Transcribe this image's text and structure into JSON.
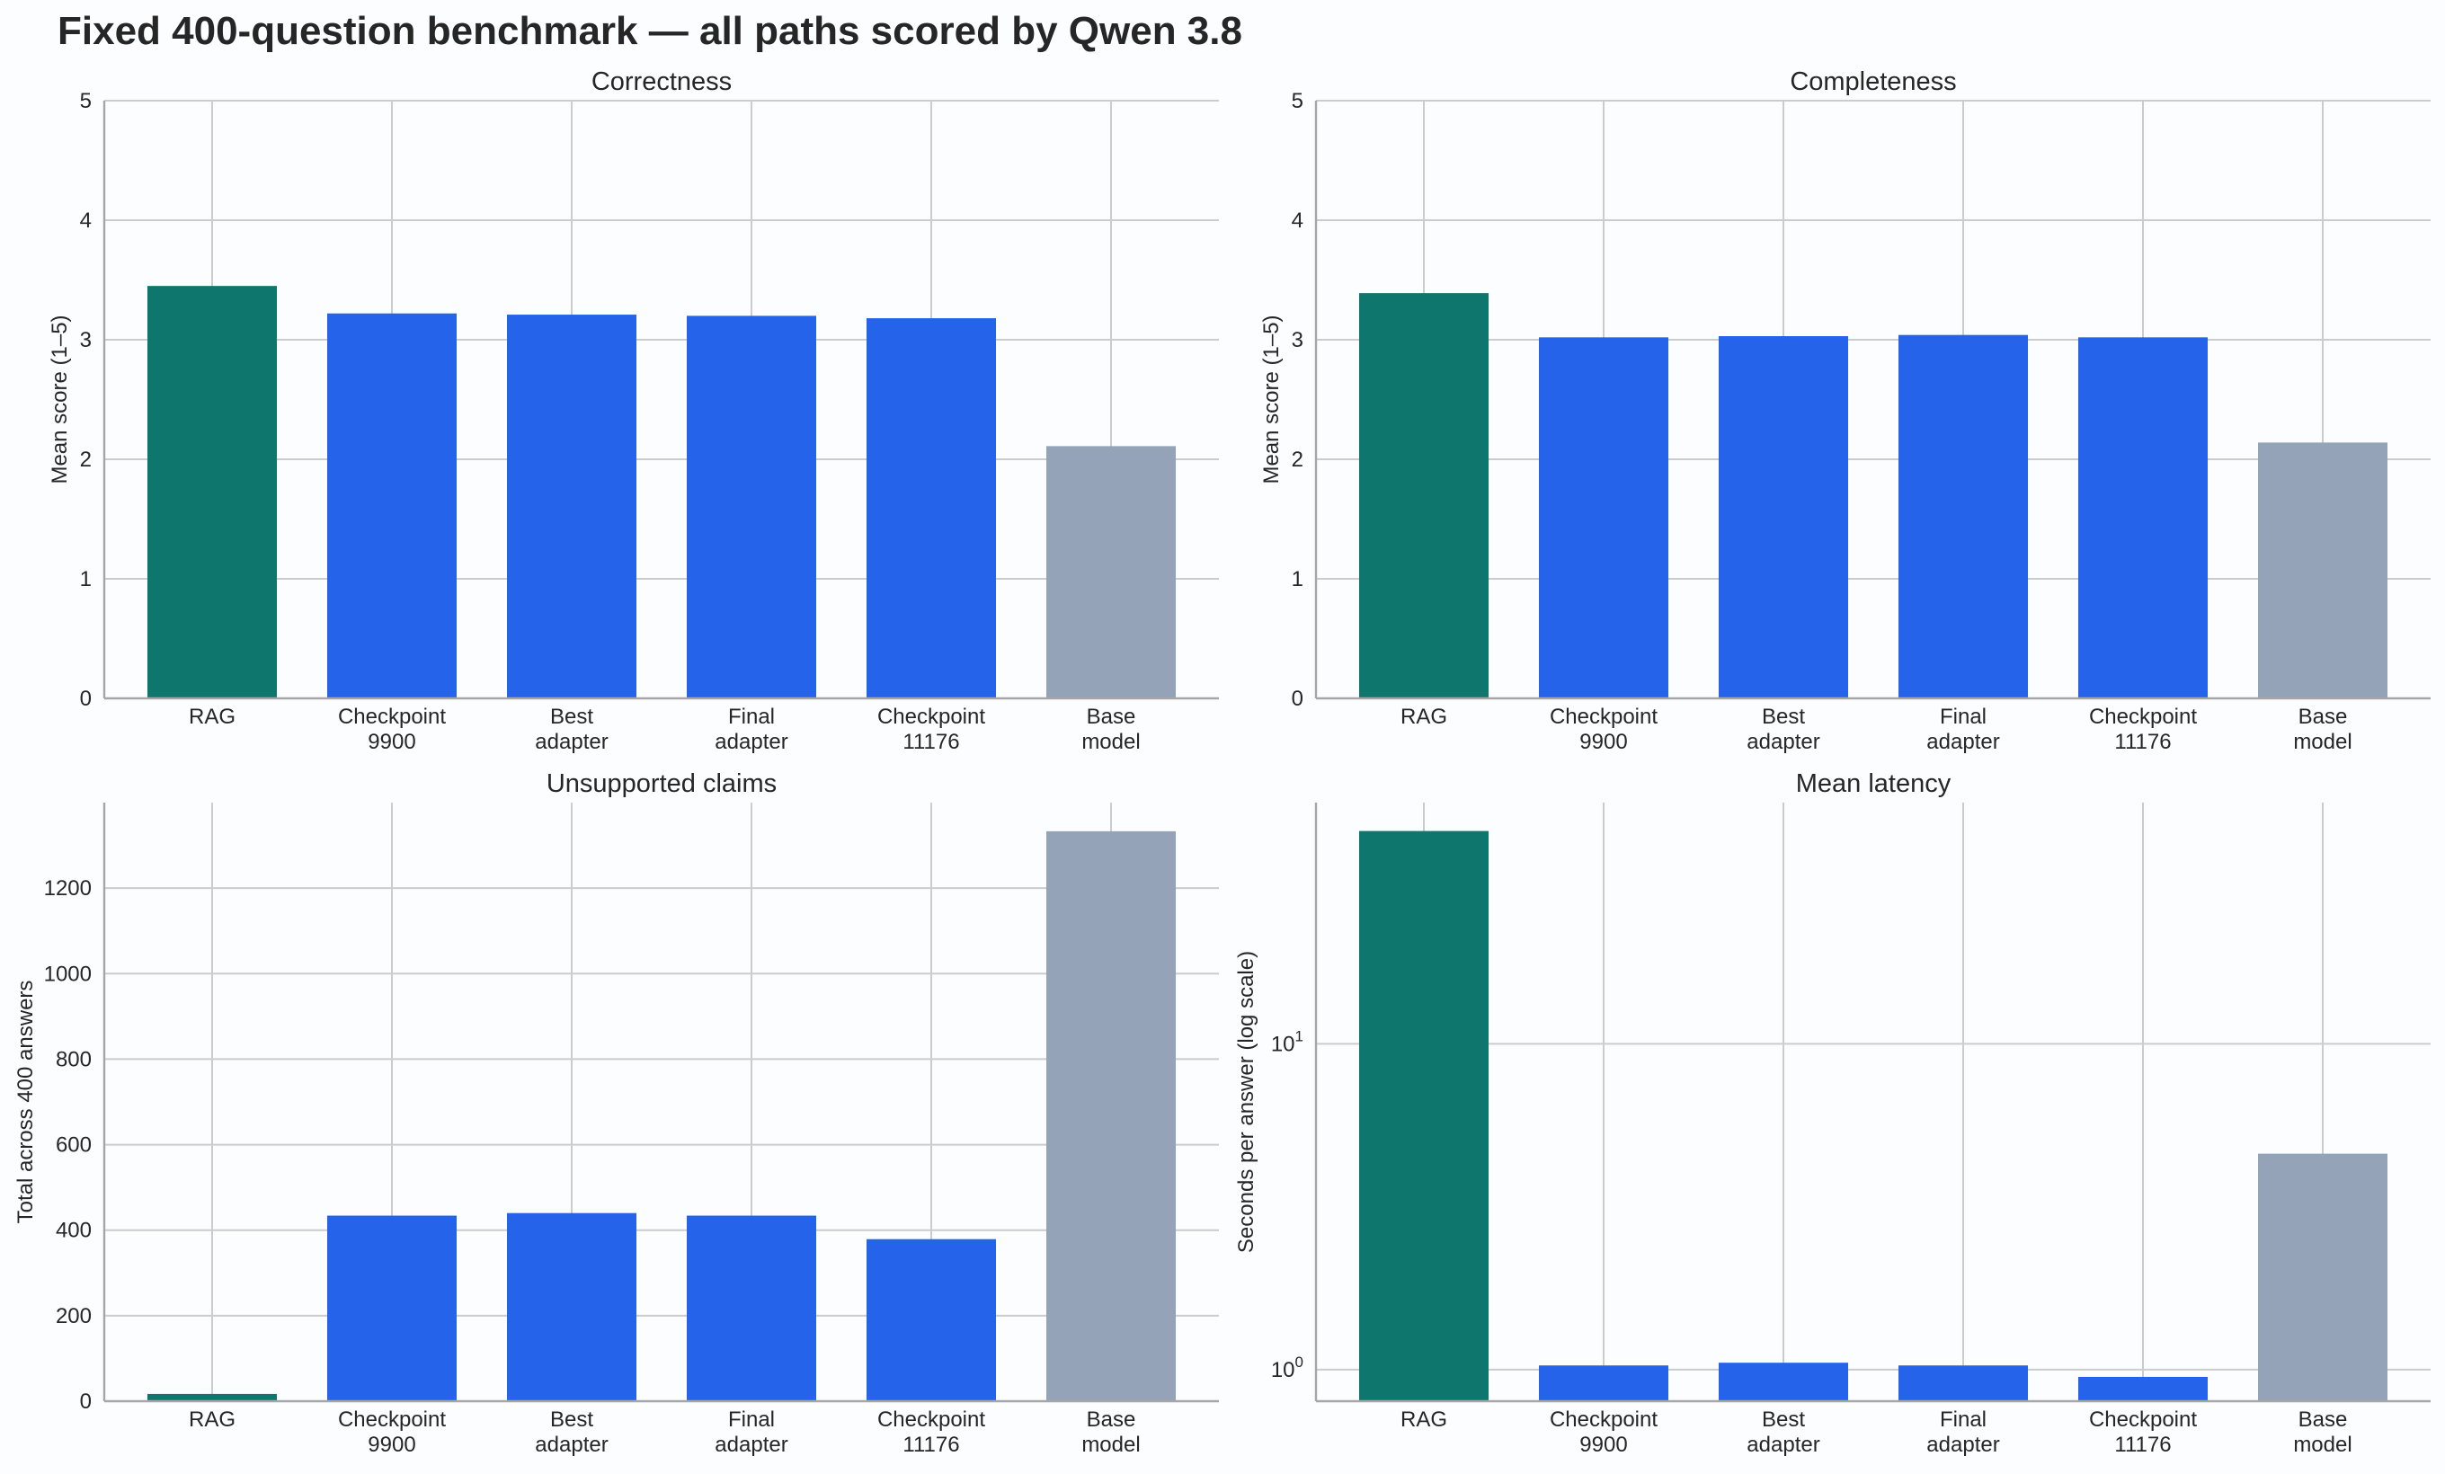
{
  "figure": {
    "title": "Fixed 400-question benchmark — all paths scored by Qwen 3.8"
  },
  "colors": {
    "rag": "#0f766e",
    "adapter": "#2563eb",
    "base": "#94a3b8",
    "grid": "#cccccc",
    "axis": "#a6a6a6",
    "text": "#262626",
    "background": "#fcfdfe"
  },
  "chart_data": [
    {
      "type": "bar",
      "title": "Correctness",
      "xlabel": "",
      "ylabel": "Mean score (1–5)",
      "categories": [
        [
          "RAG"
        ],
        [
          "Checkpoint",
          "9900"
        ],
        [
          "Best",
          "adapter"
        ],
        [
          "Final",
          "adapter"
        ],
        [
          "Checkpoint",
          "11176"
        ],
        [
          "Base",
          "model"
        ]
      ],
      "values": [
        3.45,
        3.22,
        3.21,
        3.2,
        3.18,
        2.11
      ],
      "bar_colors": [
        "rag",
        "adapter",
        "adapter",
        "adapter",
        "adapter",
        "base"
      ],
      "yscale": "linear",
      "ylim": [
        0,
        5
      ],
      "yticks": [
        0,
        1,
        2,
        3,
        4,
        5
      ],
      "ytick_labels": [
        "0",
        "1",
        "2",
        "3",
        "4",
        "5"
      ],
      "grid": true
    },
    {
      "type": "bar",
      "title": "Completeness",
      "xlabel": "",
      "ylabel": "Mean score (1–5)",
      "categories": [
        [
          "RAG"
        ],
        [
          "Checkpoint",
          "9900"
        ],
        [
          "Best",
          "adapter"
        ],
        [
          "Final",
          "adapter"
        ],
        [
          "Checkpoint",
          "11176"
        ],
        [
          "Base",
          "model"
        ]
      ],
      "values": [
        3.39,
        3.02,
        3.03,
        3.04,
        3.02,
        2.14
      ],
      "bar_colors": [
        "rag",
        "adapter",
        "adapter",
        "adapter",
        "adapter",
        "base"
      ],
      "yscale": "linear",
      "ylim": [
        0,
        5
      ],
      "yticks": [
        0,
        1,
        2,
        3,
        4,
        5
      ],
      "ytick_labels": [
        "0",
        "1",
        "2",
        "3",
        "4",
        "5"
      ],
      "grid": true
    },
    {
      "type": "bar",
      "title": "Unsupported claims",
      "xlabel": "",
      "ylabel": "Total across 400 answers",
      "categories": [
        [
          "RAG"
        ],
        [
          "Checkpoint",
          "9900"
        ],
        [
          "Best",
          "adapter"
        ],
        [
          "Final",
          "adapter"
        ],
        [
          "Checkpoint",
          "11176"
        ],
        [
          "Base",
          "model"
        ]
      ],
      "values": [
        17,
        434,
        440,
        434,
        379,
        1333
      ],
      "bar_colors": [
        "rag",
        "adapter",
        "adapter",
        "adapter",
        "adapter",
        "base"
      ],
      "yscale": "linear",
      "ylim": [
        0,
        1400
      ],
      "yticks": [
        0,
        200,
        400,
        600,
        800,
        1000,
        1200
      ],
      "ytick_labels": [
        "0",
        "200",
        "400",
        "600",
        "800",
        "1000",
        "1200"
      ],
      "grid": true
    },
    {
      "type": "bar",
      "title": "Mean latency",
      "xlabel": "",
      "ylabel": "Seconds per answer (log scale)",
      "categories": [
        [
          "RAG"
        ],
        [
          "Checkpoint",
          "9900"
        ],
        [
          "Best",
          "adapter"
        ],
        [
          "Final",
          "adapter"
        ],
        [
          "Checkpoint",
          "11176"
        ],
        [
          "Base",
          "model"
        ]
      ],
      "values": [
        45.0,
        1.03,
        1.05,
        1.03,
        0.95,
        4.6
      ],
      "bar_colors": [
        "rag",
        "adapter",
        "adapter",
        "adapter",
        "adapter",
        "base"
      ],
      "yscale": "log",
      "ylim": [
        0.8,
        55
      ],
      "yticks": [
        1,
        10
      ],
      "ytick_labels": [
        [
          "10",
          "0"
        ],
        [
          "10",
          "1"
        ]
      ],
      "grid": true
    }
  ]
}
